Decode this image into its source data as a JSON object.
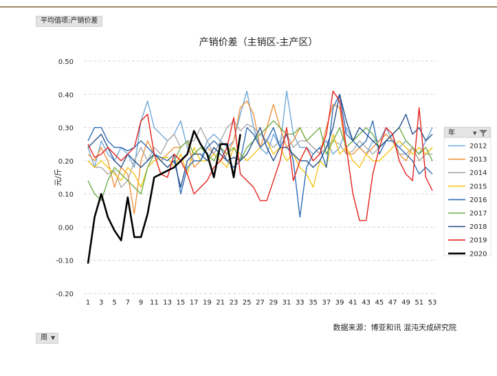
{
  "pivot": {
    "value_field": "平均值项:产销价差",
    "week_field": "周"
  },
  "legend": {
    "title": "年"
  },
  "chart_data": {
    "type": "line",
    "title": "产销价差（主销区-主产区）",
    "ylabel": "元/斤",
    "xlabel": "",
    "source": "数据来源：博亚和讯 混沌天成研究院",
    "ylim": [
      -0.2,
      0.5
    ],
    "yticks": [
      "0.50",
      "0.40",
      "0.30",
      "0.20",
      "0.10",
      "0.00",
      "-0.10",
      "-0.20"
    ],
    "xlim": [
      1,
      53
    ],
    "xticks": [
      "1",
      "3",
      "5",
      "7",
      "9",
      "11",
      "13",
      "15",
      "17",
      "19",
      "21",
      "23",
      "25",
      "27",
      "29",
      "31",
      "33",
      "35",
      "37",
      "39",
      "41",
      "43",
      "45",
      "47",
      "49",
      "51",
      "53"
    ],
    "grid": true,
    "legend_position": "right",
    "series": [
      {
        "name": "2012",
        "color": "#6fa7d8",
        "values": [
          0.24,
          0.18,
          0.26,
          0.22,
          0.2,
          0.24,
          0.22,
          0.18,
          0.32,
          0.38,
          0.3,
          0.28,
          0.26,
          0.28,
          0.32,
          0.24,
          0.2,
          0.2,
          0.26,
          0.28,
          0.26,
          0.24,
          0.26,
          0.34,
          0.41,
          0.3,
          0.24,
          0.22,
          0.28,
          0.24,
          0.41,
          0.28,
          0.24,
          0.24,
          0.22,
          0.24,
          0.26,
          0.22,
          0.24,
          0.3,
          0.26,
          0.24,
          0.22,
          0.26,
          0.26,
          0.3,
          0.26,
          0.24,
          0.26,
          0.24,
          0.22,
          0.26,
          0.3
        ]
      },
      {
        "name": "2013",
        "color": "#f0923e",
        "values": [
          0.22,
          0.2,
          0.24,
          0.2,
          0.12,
          0.18,
          0.16,
          0.04,
          0.2,
          0.26,
          0.22,
          0.2,
          0.22,
          0.24,
          0.24,
          0.26,
          0.18,
          0.2,
          0.24,
          0.22,
          0.2,
          0.22,
          0.26,
          0.36,
          0.38,
          0.34,
          0.24,
          0.3,
          0.37,
          0.3,
          0.24,
          0.26,
          0.3,
          0.26,
          0.24,
          0.22,
          0.3,
          0.37,
          0.36,
          0.22,
          0.22,
          0.24,
          0.22,
          0.24,
          0.26,
          0.28,
          0.26,
          0.22,
          0.2,
          0.24,
          0.2,
          0.22,
          0.24
        ]
      },
      {
        "name": "2014",
        "color": "#a9a9a9",
        "values": [
          0.2,
          0.18,
          0.18,
          0.16,
          0.17,
          0.12,
          0.14,
          0.2,
          0.24,
          0.2,
          0.24,
          0.22,
          0.26,
          0.28,
          0.24,
          0.26,
          0.26,
          0.3,
          0.26,
          0.22,
          0.26,
          0.3,
          0.32,
          0.29,
          0.31,
          0.3,
          0.28,
          0.26,
          0.24,
          0.26,
          0.28,
          0.24,
          0.26,
          0.26,
          0.24,
          0.22,
          0.24,
          0.26,
          0.25,
          0.22,
          0.23,
          0.26,
          0.24,
          0.22,
          0.24,
          0.26,
          0.28,
          0.22,
          0.22,
          0.24,
          0.2,
          0.22,
          0.22
        ]
      },
      {
        "name": "2015",
        "color": "#f5c518",
        "values": [
          0.2,
          0.18,
          0.2,
          0.18,
          0.16,
          0.14,
          0.18,
          0.16,
          0.12,
          0.18,
          0.2,
          0.21,
          0.21,
          0.18,
          0.22,
          0.16,
          0.24,
          0.2,
          0.2,
          0.22,
          0.2,
          0.18,
          0.24,
          0.22,
          0.2,
          0.22,
          0.24,
          0.26,
          0.22,
          0.24,
          0.2,
          0.22,
          0.18,
          0.16,
          0.12,
          0.2,
          0.18,
          0.28,
          0.22,
          0.24,
          0.2,
          0.18,
          0.22,
          0.2,
          0.2,
          0.22,
          0.24,
          0.26,
          0.24,
          0.22,
          0.24,
          0.22,
          0.24
        ]
      },
      {
        "name": "2016",
        "color": "#2e6db4",
        "values": [
          0.26,
          0.3,
          0.3,
          0.26,
          0.24,
          0.24,
          0.23,
          0.24,
          0.26,
          0.24,
          0.22,
          0.21,
          0.2,
          0.22,
          0.1,
          0.18,
          0.2,
          0.2,
          0.24,
          0.26,
          0.24,
          0.2,
          0.18,
          0.2,
          0.3,
          0.28,
          0.24,
          0.26,
          0.3,
          0.24,
          0.28,
          0.2,
          0.03,
          0.18,
          0.22,
          0.24,
          0.18,
          0.36,
          0.4,
          0.28,
          0.26,
          0.24,
          0.26,
          0.32,
          0.22,
          0.26,
          0.26,
          0.24,
          0.22,
          0.2,
          0.16,
          0.18,
          0.16
        ]
      },
      {
        "name": "2017",
        "color": "#70ad47",
        "values": [
          0.14,
          0.1,
          0.08,
          0.14,
          0.18,
          0.16,
          0.14,
          0.12,
          0.1,
          0.18,
          0.22,
          0.2,
          0.18,
          0.2,
          0.24,
          0.26,
          0.22,
          0.24,
          0.22,
          0.2,
          0.24,
          0.22,
          0.24,
          0.2,
          0.24,
          0.26,
          0.28,
          0.3,
          0.32,
          0.3,
          0.28,
          0.28,
          0.3,
          0.26,
          0.28,
          0.3,
          0.22,
          0.26,
          0.3,
          0.24,
          0.26,
          0.28,
          0.3,
          0.28,
          0.24,
          0.26,
          0.28,
          0.3,
          0.26,
          0.24,
          0.22,
          0.24,
          0.2
        ]
      },
      {
        "name": "2018",
        "color": "#254f8c",
        "values": [
          0.24,
          0.26,
          0.28,
          0.24,
          0.2,
          0.18,
          0.22,
          0.2,
          0.18,
          0.2,
          0.22,
          0.2,
          0.18,
          0.2,
          0.12,
          0.2,
          0.22,
          0.22,
          0.2,
          0.24,
          0.22,
          0.2,
          0.21,
          0.2,
          0.22,
          0.26,
          0.3,
          0.24,
          0.2,
          0.24,
          0.24,
          0.22,
          0.2,
          0.2,
          0.18,
          0.2,
          0.24,
          0.3,
          0.4,
          0.32,
          0.26,
          0.3,
          0.28,
          0.26,
          0.24,
          0.26,
          0.28,
          0.3,
          0.34,
          0.28,
          0.3,
          0.26,
          0.28
        ]
      },
      {
        "name": "2019",
        "color": "#e3201b",
        "values": [
          0.25,
          0.21,
          0.22,
          0.24,
          0.22,
          0.2,
          0.22,
          0.24,
          0.32,
          0.34,
          0.22,
          0.16,
          0.15,
          0.22,
          0.2,
          0.16,
          0.1,
          0.12,
          0.14,
          0.18,
          0.2,
          0.24,
          0.33,
          0.16,
          0.14,
          0.12,
          0.08,
          0.08,
          0.14,
          0.2,
          0.3,
          0.14,
          0.2,
          0.24,
          0.2,
          0.22,
          0.28,
          0.41,
          0.38,
          0.24,
          0.1,
          0.02,
          0.02,
          0.16,
          0.24,
          0.3,
          0.28,
          0.2,
          0.16,
          0.14,
          0.36,
          0.15,
          0.11
        ]
      },
      {
        "name": "2020",
        "color": "#000000",
        "values": [
          -0.11,
          0.03,
          0.1,
          0.03,
          -0.01,
          -0.04,
          0.09,
          -0.03,
          -0.03,
          0.04,
          0.15,
          0.16,
          0.17,
          0.18,
          0.2,
          0.22,
          0.29,
          0.25,
          0.22,
          0.15,
          0.25,
          0.25,
          0.15,
          0.28
        ]
      }
    ]
  }
}
